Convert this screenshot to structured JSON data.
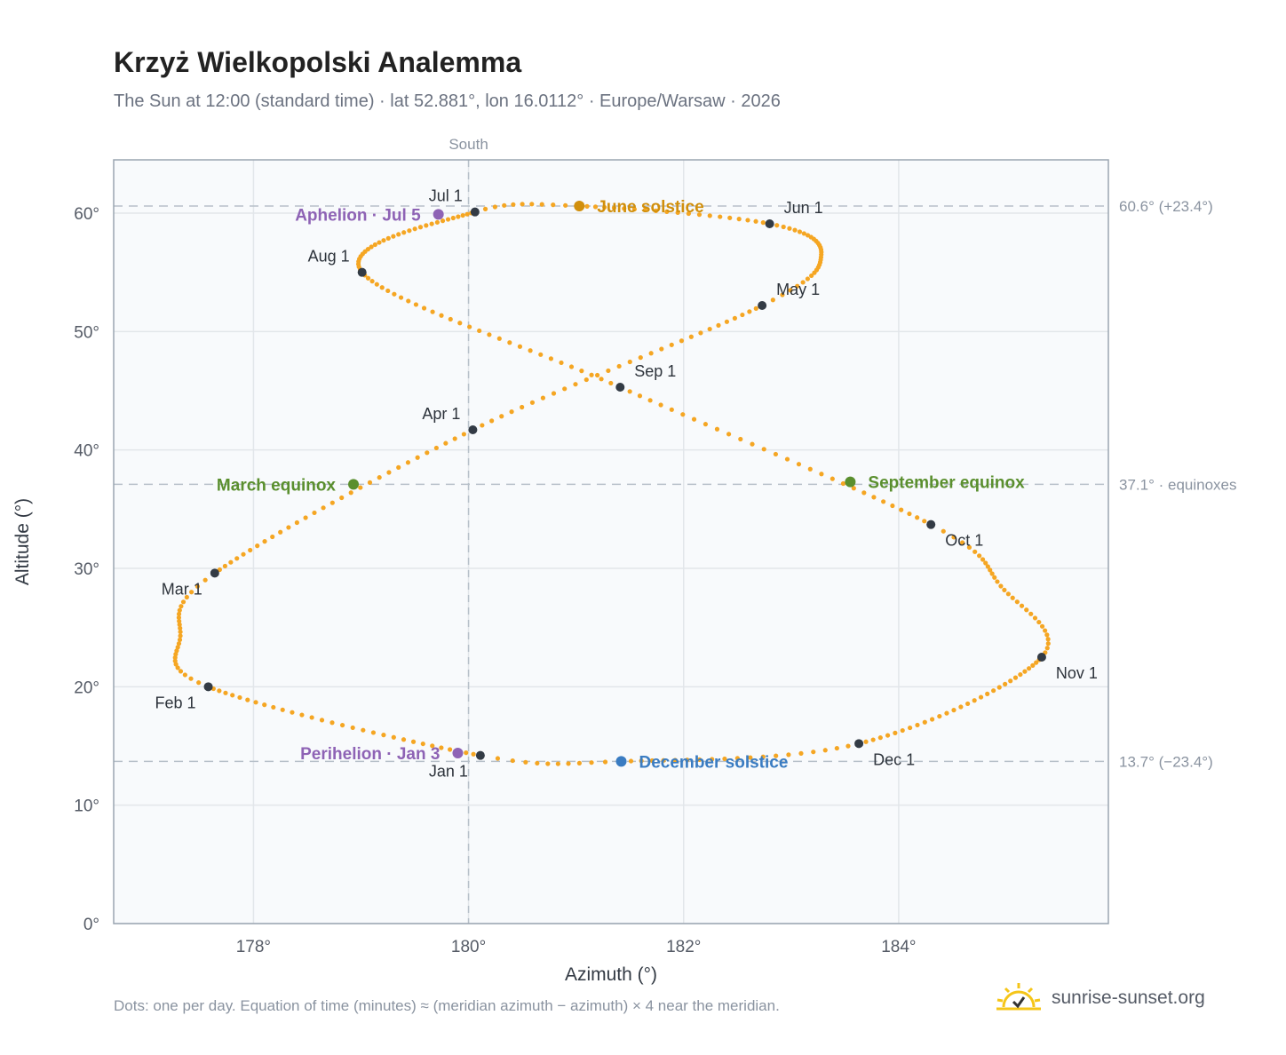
{
  "title": "Krzyż Wielkopolski Analemma",
  "subtitle": "The Sun at 12:00 (standard time) · lat 52.881°, lon 16.0112° · Europe/Warsaw · 2026",
  "footnote": "Dots: one per day. Equation of time (minutes) ≈ (meridian azimuth − azimuth) × 4 near the meridian.",
  "brand": {
    "text": "sunrise-sunset.org",
    "icon": "sun-logo-icon"
  },
  "colors": {
    "path": "#f5a623",
    "month": "#333b45",
    "solstice_june": "#d18f0c",
    "solstice_december": "#3a7cc2",
    "equinox": "#5a8f2e",
    "apsis": "#8e63b5",
    "plot_bg": "#f8fafc",
    "grid": "#e2e6ea",
    "ref_line": "#b7c0c9"
  },
  "chart_data": {
    "type": "scatter",
    "title": "Krzyż Wielkopolski Analemma",
    "subtitle": "The Sun at 12:00 (standard time) · lat 52.881°, lon 16.0112° · Europe/Warsaw · 2026",
    "xlabel": "Azimuth (°)",
    "ylabel": "Altitude (°)",
    "xlim": [
      176.7,
      185.95
    ],
    "ylim": [
      0,
      64.5
    ],
    "xticks": [
      178,
      180,
      182,
      184
    ],
    "xtick_labels": [
      "178°",
      "180°",
      "182°",
      "184°"
    ],
    "yticks": [
      0,
      10,
      20,
      30,
      40,
      50,
      60
    ],
    "ytick_labels": [
      "0°",
      "10°",
      "20°",
      "30°",
      "40°",
      "50°",
      "60°"
    ],
    "grid": true,
    "meridian": {
      "x": 180,
      "label": "South"
    },
    "reference_lines": [
      {
        "y": 60.6,
        "label": "60.6° (+23.4°)"
      },
      {
        "y": 37.1,
        "label": "37.1° · equinoxes"
      },
      {
        "y": 13.7,
        "label": "13.7° (−23.4°)"
      }
    ],
    "path_knots": [
      {
        "day": 1,
        "x": 180.11,
        "y": 14.2
      },
      {
        "day": 32,
        "x": 177.58,
        "y": 20.0
      },
      {
        "day": 46,
        "x": 177.32,
        "y": 24.3
      },
      {
        "day": 60,
        "x": 177.64,
        "y": 29.6
      },
      {
        "day": 91,
        "x": 180.04,
        "y": 41.7
      },
      {
        "day": 121,
        "x": 182.73,
        "y": 52.2
      },
      {
        "day": 136,
        "x": 183.28,
        "y": 56.5
      },
      {
        "day": 152,
        "x": 182.8,
        "y": 59.1
      },
      {
        "day": 172,
        "x": 181.03,
        "y": 60.6
      },
      {
        "day": 182,
        "x": 180.06,
        "y": 60.1
      },
      {
        "day": 213,
        "x": 179.01,
        "y": 55.0
      },
      {
        "day": 244,
        "x": 181.41,
        "y": 45.3
      },
      {
        "day": 274,
        "x": 184.3,
        "y": 33.7
      },
      {
        "day": 288,
        "x": 184.95,
        "y": 28.5
      },
      {
        "day": 305,
        "x": 185.33,
        "y": 22.5
      },
      {
        "day": 335,
        "x": 183.63,
        "y": 15.2
      },
      {
        "day": 355,
        "x": 181.42,
        "y": 13.7
      },
      {
        "day": 366,
        "x": 180.11,
        "y": 14.2
      }
    ],
    "months": [
      {
        "label": "Jan 1",
        "x": 180.11,
        "y": 14.2,
        "pos": "below-left"
      },
      {
        "label": "Feb 1",
        "x": 177.58,
        "y": 20.0,
        "pos": "below-left"
      },
      {
        "label": "Mar 1",
        "x": 177.64,
        "y": 29.6,
        "pos": "below-left"
      },
      {
        "label": "Apr 1",
        "x": 180.04,
        "y": 41.7,
        "pos": "above-left"
      },
      {
        "label": "May 1",
        "x": 182.73,
        "y": 52.2,
        "pos": "above-right"
      },
      {
        "label": "Jun 1",
        "x": 182.8,
        "y": 59.1,
        "pos": "above-right"
      },
      {
        "label": "Jul 1",
        "x": 180.06,
        "y": 60.1,
        "pos": "above-left"
      },
      {
        "label": "Aug 1",
        "x": 179.01,
        "y": 55.0,
        "pos": "above-left"
      },
      {
        "label": "Sep 1",
        "x": 181.41,
        "y": 45.3,
        "pos": "above-right"
      },
      {
        "label": "Oct 1",
        "x": 184.3,
        "y": 33.7,
        "pos": "below-right"
      },
      {
        "label": "Nov 1",
        "x": 185.33,
        "y": 22.5,
        "pos": "below-right"
      },
      {
        "label": "Dec 1",
        "x": 183.63,
        "y": 15.2,
        "pos": "below-right"
      }
    ],
    "events": [
      {
        "label": "June solstice",
        "x": 181.03,
        "y": 60.6,
        "color": "#d18f0c",
        "pos": "right"
      },
      {
        "label": "December solstice",
        "x": 181.42,
        "y": 13.7,
        "color": "#3a7cc2",
        "pos": "right"
      },
      {
        "label": "March equinox",
        "x": 178.93,
        "y": 37.1,
        "color": "#5a8f2e",
        "pos": "left"
      },
      {
        "label": "September equinox",
        "x": 183.55,
        "y": 37.3,
        "color": "#5a8f2e",
        "pos": "right"
      },
      {
        "label": "Aphelion · Jul 5",
        "x": 179.72,
        "y": 59.9,
        "color": "#8e63b5",
        "pos": "left"
      },
      {
        "label": "Perihelion · Jan 3",
        "x": 179.9,
        "y": 14.4,
        "color": "#8e63b5",
        "pos": "left"
      }
    ]
  }
}
